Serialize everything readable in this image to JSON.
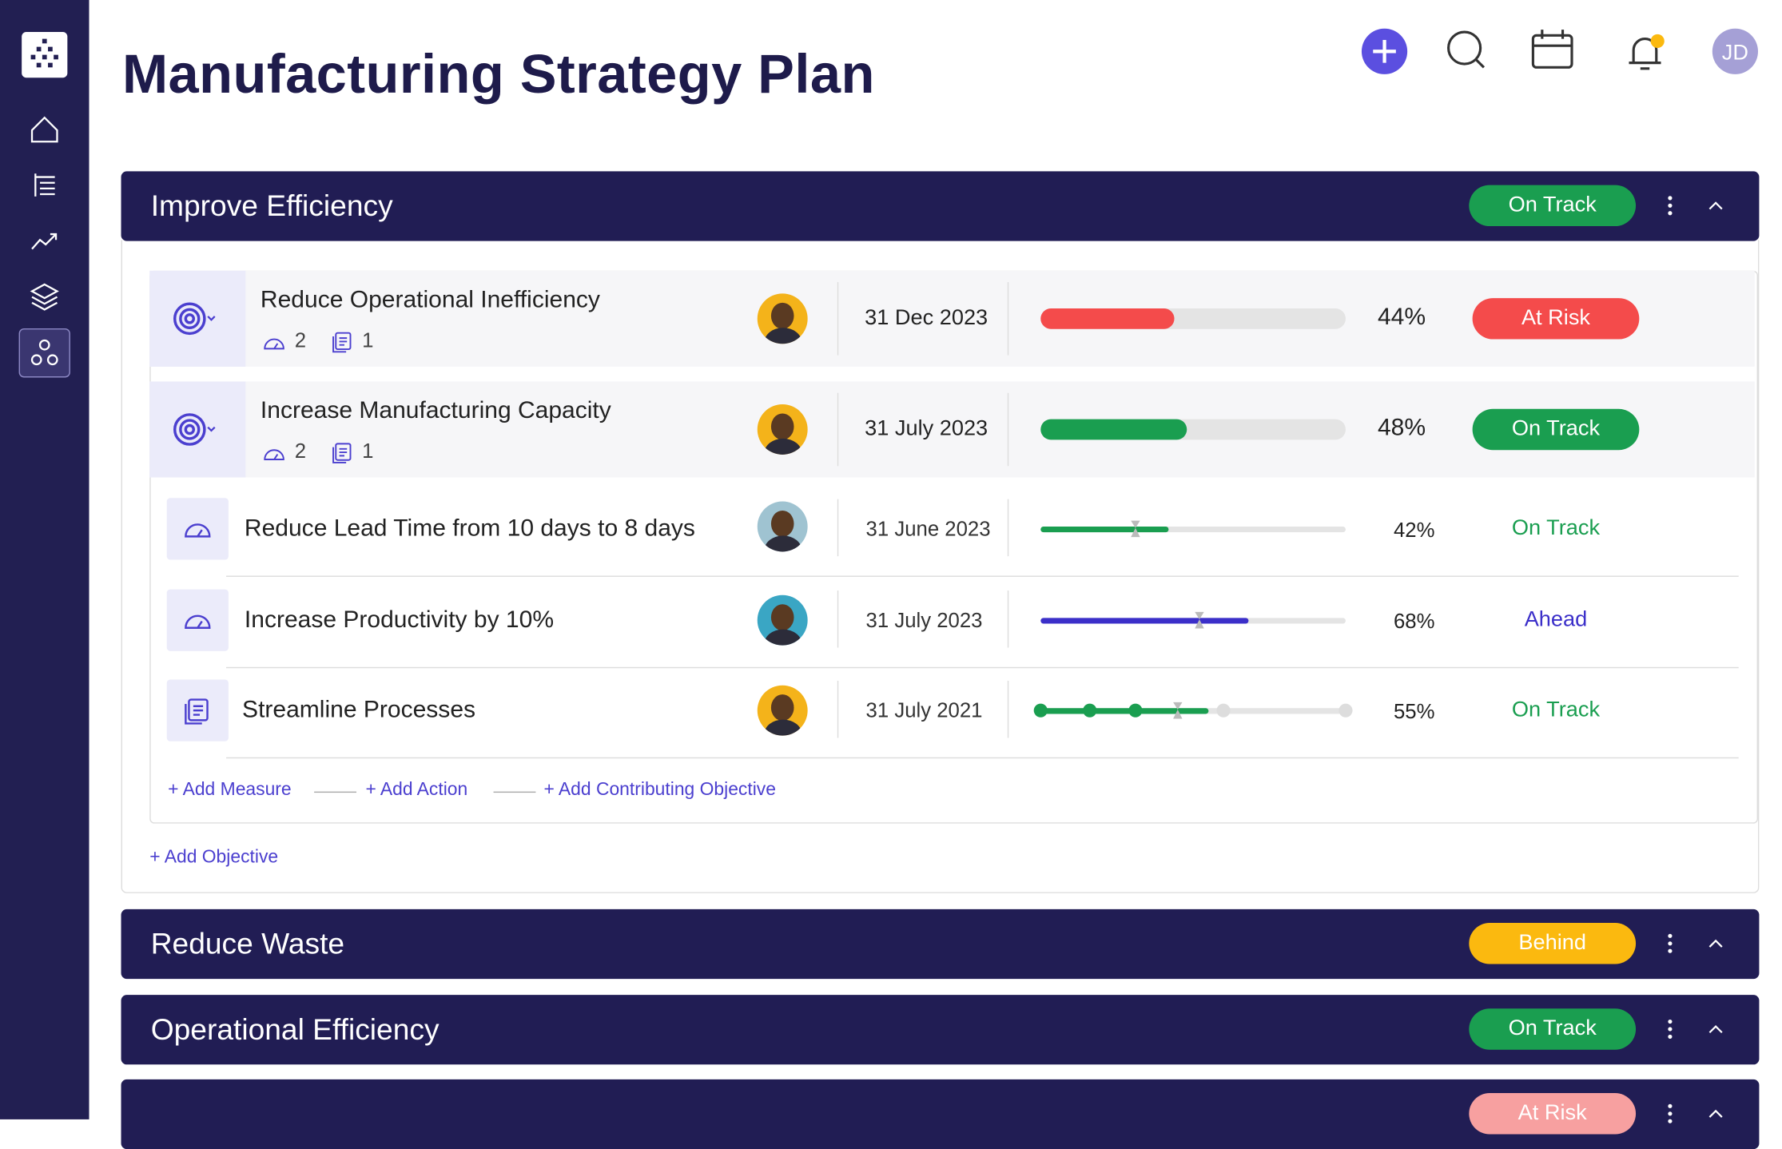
{
  "header": {
    "title": "Manufacturing Strategy Plan",
    "avatar": "JD"
  },
  "sections": [
    {
      "title": "Improve Efficiency",
      "status": "On Track",
      "status_color": "#1a9e50",
      "objectives": [
        {
          "title": "Reduce Operational Inefficiency",
          "measures": 2,
          "actions": 1,
          "date": "31 Dec 2023",
          "progress": 44,
          "progress_label": "44%",
          "color": "#f44b4b",
          "status": "At Risk",
          "status_color": "#f44b4b"
        },
        {
          "title": "Increase Manufacturing Capacity",
          "measures": 2,
          "actions": 1,
          "date": "31 July 2023",
          "progress": 48,
          "progress_label": "48%",
          "color": "#1a9e50",
          "status": "On Track",
          "status_color": "#1a9e50"
        }
      ],
      "items": [
        {
          "title": "Reduce Lead Time from 10 days to 8 days",
          "date": "31 June 2023",
          "progress": 42,
          "progress_label": "42%",
          "target": 31,
          "color": "#1a9e50",
          "status": "On Track",
          "status_color": "#1a9e50"
        },
        {
          "title": "Increase Productivity by 10%",
          "date": "31 July 2023",
          "progress": 68,
          "progress_label": "68%",
          "target": 52,
          "color": "#3b2fc9",
          "status": "Ahead",
          "status_color": "#3b2fc9"
        },
        {
          "title": "Streamline Processes",
          "date": "31 July 2021",
          "progress": 55,
          "progress_label": "55%",
          "target": 45,
          "color": "#1a9e50",
          "status": "On Track",
          "status_color": "#1a9e50"
        }
      ],
      "links": [
        "+ Add Measure",
        "+ Add Action",
        "+ Add Contributing Objective"
      ],
      "add_objective": "+ Add Objective"
    },
    {
      "title": "Reduce Waste",
      "status": "Behind",
      "status_color": "#fbb90f"
    },
    {
      "title": "Operational Efficiency",
      "status": "On Track",
      "status_color": "#1a9e50"
    },
    {
      "status": "At Risk",
      "status_color": "#f7a0a0"
    }
  ]
}
